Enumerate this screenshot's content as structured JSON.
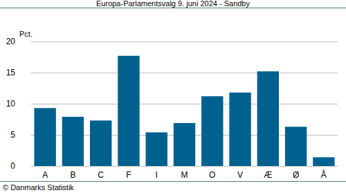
{
  "chart_data": {
    "type": "bar",
    "title": "Europa-Parlamentsvalg 9. juni 2024 - Sandby",
    "y_label": "Pct.",
    "source": "© Danmarks Statistik",
    "categories": [
      "A",
      "B",
      "C",
      "F",
      "I",
      "M",
      "O",
      "V",
      "Æ",
      "Ø",
      "Å"
    ],
    "values": [
      9.3,
      7.9,
      7.3,
      17.7,
      5.4,
      6.9,
      11.2,
      11.8,
      15.2,
      6.3,
      1.4
    ],
    "color": "#00618e",
    "ylim": [
      0,
      20
    ],
    "yticks": [
      0,
      5,
      10,
      15,
      20
    ],
    "grid": true
  }
}
